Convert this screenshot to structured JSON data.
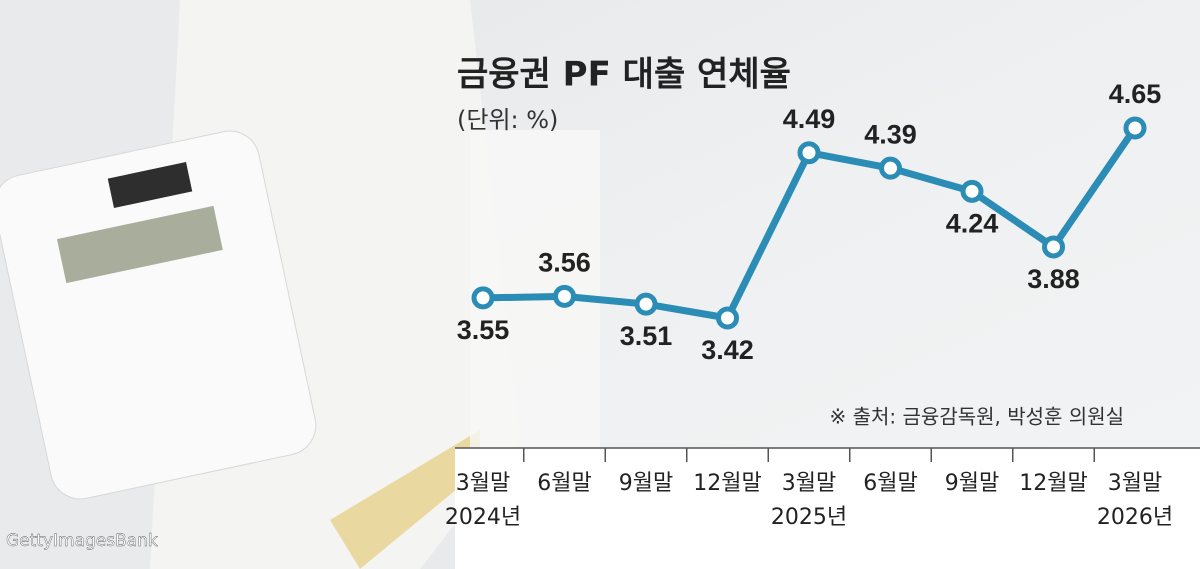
{
  "chart_data": {
    "type": "line",
    "title": "금융권 PF 대출 연체율",
    "subtitle": "(단위: %)",
    "source": "※ 출처: 금융감독원, 박성훈 의원실",
    "credit": "GettyImagesBank",
    "categories": [
      "3월말",
      "6월말",
      "9월말",
      "12월말",
      "3월말",
      "6월말",
      "9월말",
      "12월말",
      "3월말"
    ],
    "category_years": [
      "2024년",
      null,
      null,
      null,
      "2025년",
      null,
      null,
      null,
      "2026년"
    ],
    "values": [
      3.55,
      3.56,
      3.51,
      3.42,
      4.49,
      4.39,
      4.24,
      3.88,
      4.65
    ],
    "color": "#2b8cb6"
  }
}
